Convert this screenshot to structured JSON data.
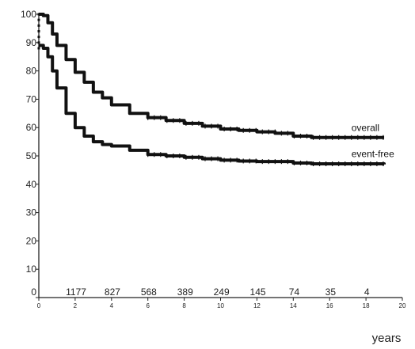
{
  "chart_data": {
    "type": "line",
    "title": "",
    "xlabel": "years",
    "ylabel": "",
    "xlim": [
      0,
      20
    ],
    "ylim": [
      0,
      100
    ],
    "x_ticks": [
      0,
      2,
      4,
      6,
      8,
      10,
      12,
      14,
      16,
      18,
      20
    ],
    "y_ticks": [
      0,
      10,
      20,
      30,
      40,
      50,
      60,
      70,
      80,
      90,
      100
    ],
    "grid": false,
    "legend": "none",
    "at_risk_numbers": [
      "0",
      "1177",
      "827",
      "568",
      "389",
      "249",
      "145",
      "74",
      "35",
      "4"
    ],
    "series": [
      {
        "name": "overall",
        "color": "#111111",
        "x": [
          0,
          0.25,
          0.5,
          0.75,
          1,
          1.5,
          2,
          2.5,
          3,
          3.5,
          4,
          5,
          6,
          7,
          8,
          9,
          10,
          11,
          12,
          13,
          14,
          15,
          16,
          17,
          18,
          19
        ],
        "y": [
          100,
          99.5,
          97,
          93,
          89,
          84,
          79.5,
          76,
          72.5,
          70.5,
          68,
          65,
          63.5,
          62.5,
          61.5,
          60.5,
          59.5,
          59,
          58.5,
          58,
          57,
          56.5,
          56.5,
          56.5,
          56.5,
          56.5
        ]
      },
      {
        "name": "event-free",
        "color": "#111111",
        "x": [
          0,
          0.25,
          0.5,
          0.75,
          1,
          1.5,
          2,
          2.5,
          3,
          3.5,
          4,
          5,
          6,
          7,
          8,
          9,
          10,
          11,
          12,
          13,
          14,
          15,
          16,
          17,
          18,
          19
        ],
        "y": [
          89,
          88,
          85,
          80,
          74,
          65,
          60,
          57,
          55,
          54,
          53.5,
          52,
          50.5,
          50,
          49.5,
          49,
          48.5,
          48.2,
          48,
          48,
          47.5,
          47.2,
          47.2,
          47.2,
          47.2,
          47
        ]
      }
    ]
  }
}
